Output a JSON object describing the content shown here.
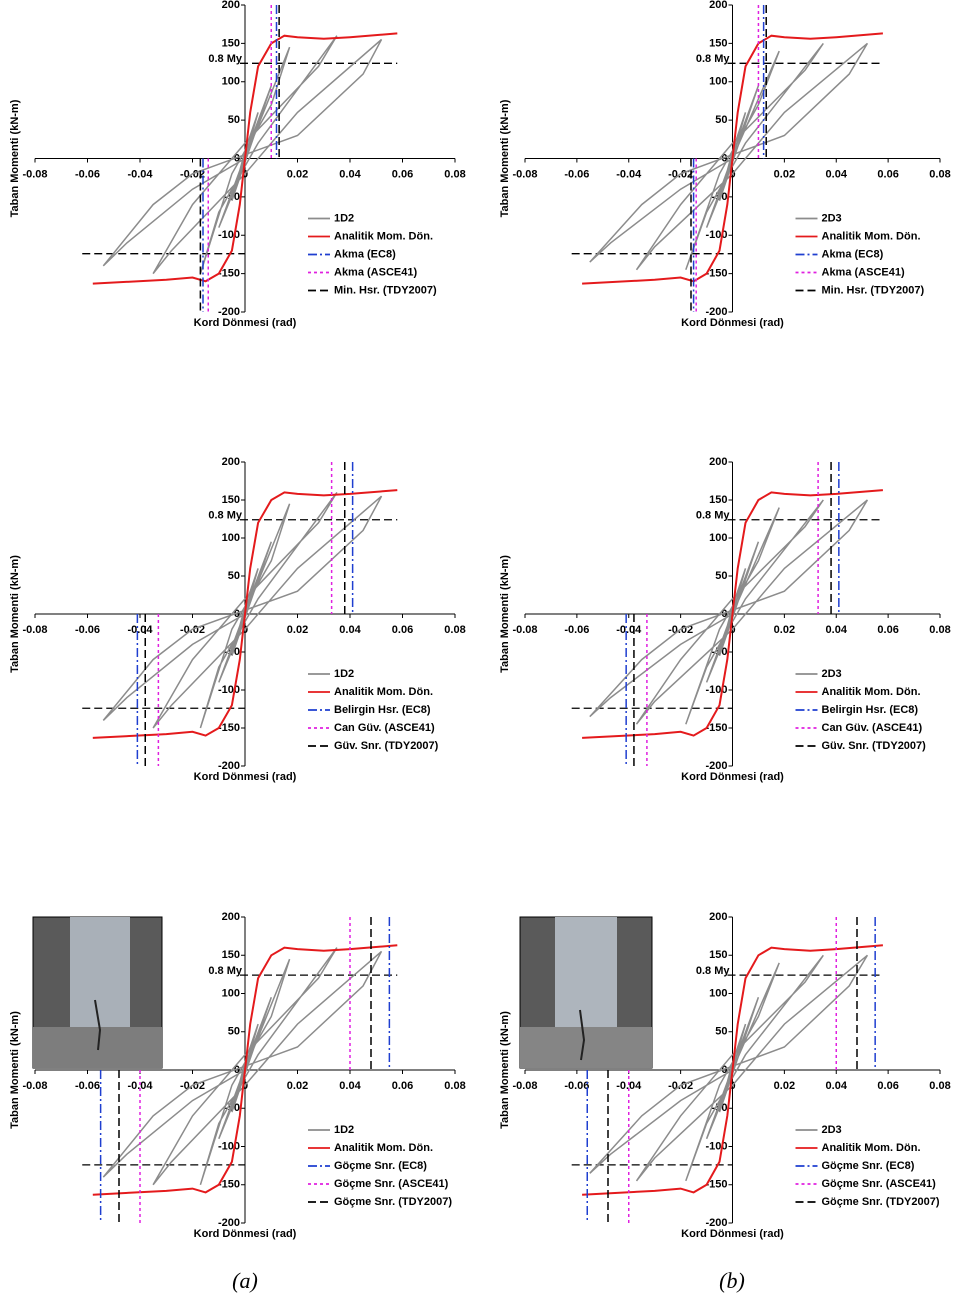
{
  "chart_data": [
    {
      "type": "line",
      "y_label": "Taban Momenti (kN-m)",
      "x_label": "Kord Dönmesi (rad)",
      "xlim": [
        -0.08,
        0.08
      ],
      "ylim": [
        -200,
        200
      ],
      "xticks": [
        -0.08,
        -0.06,
        -0.04,
        -0.02,
        0,
        0.02,
        0.04,
        0.06,
        0.08
      ],
      "yticks": [
        -200,
        -150,
        -100,
        -50,
        0,
        50,
        100,
        150,
        200
      ],
      "series": [
        {
          "name": "1D2",
          "color": "#8c8c8c",
          "x": [
            0,
            0.005,
            0,
            -0.005,
            0,
            0.01,
            0.004,
            -0.01,
            -0.004,
            0,
            0.017,
            0.01,
            -0.005,
            -0.017,
            -0.01,
            0.005,
            0.035,
            0.028,
            0,
            -0.02,
            -0.035,
            -0.028,
            0,
            0.02,
            0.052,
            0.045,
            0.02,
            -0.02,
            -0.035,
            -0.054,
            -0.045,
            -0.02,
            0
          ],
          "values": [
            0,
            60,
            10,
            -55,
            -5,
            95,
            40,
            -90,
            -40,
            0,
            145,
            70,
            -20,
            -150,
            -70,
            20,
            160,
            120,
            20,
            -60,
            -150,
            -120,
            -20,
            60,
            155,
            110,
            30,
            -20,
            -60,
            -140,
            -110,
            -40,
            0
          ]
        },
        {
          "name": "Analitik Mom. Dön.",
          "color": "#e41a1c",
          "x": [
            -0.058,
            -0.03,
            -0.02,
            -0.015,
            -0.01,
            -0.005,
            -0.002,
            0,
            0.002,
            0.005,
            0.01,
            0.015,
            0.02,
            0.03,
            0.04,
            0.058
          ],
          "values": [
            -163,
            -158,
            -155,
            -160,
            -150,
            -120,
            -60,
            0,
            60,
            120,
            150,
            160,
            158,
            156,
            158,
            163
          ]
        }
      ],
      "limit_lines": [
        {
          "name": "Akma (EC8)",
          "color": "#1f3fd0",
          "style": "dashdot",
          "x": [
            0.012,
            -0.016
          ]
        },
        {
          "name": "Akma (ASCE41)",
          "color": "#e020e0",
          "style": "dot",
          "x": [
            0.01,
            -0.014
          ]
        },
        {
          "name": "Min. Hsr. (TDY2007)",
          "color": "#000000",
          "style": "dash",
          "x": [
            0.013,
            -0.017
          ]
        }
      ],
      "ref_line": {
        "label": "0.8 My",
        "y": [
          124,
          -124
        ]
      }
    },
    {
      "type": "line",
      "y_label": "Taban Momenti (kN-m)",
      "x_label": "Kord Dönmesi (rad)",
      "xlim": [
        -0.08,
        0.08
      ],
      "ylim": [
        -200,
        200
      ],
      "xticks": [
        -0.08,
        -0.06,
        -0.04,
        -0.02,
        0,
        0.02,
        0.04,
        0.06,
        0.08
      ],
      "yticks": [
        -200,
        -150,
        -100,
        -50,
        0,
        50,
        100,
        150,
        200
      ],
      "series": [
        {
          "name": "2D3",
          "color": "#8c8c8c",
          "x": [
            0,
            0.005,
            0,
            -0.005,
            0,
            0.01,
            0.004,
            -0.01,
            -0.004,
            0,
            0.018,
            0.01,
            -0.005,
            -0.018,
            -0.01,
            0.005,
            0.035,
            0.028,
            0,
            -0.02,
            -0.037,
            -0.03,
            0,
            0.02,
            0.052,
            0.045,
            0.02,
            -0.02,
            -0.035,
            -0.055,
            -0.047,
            -0.02,
            0
          ],
          "values": [
            0,
            60,
            10,
            -55,
            -5,
            95,
            40,
            -90,
            -40,
            0,
            140,
            70,
            -20,
            -145,
            -70,
            20,
            150,
            115,
            20,
            -60,
            -145,
            -115,
            -20,
            60,
            150,
            110,
            30,
            -20,
            -60,
            -135,
            -110,
            -40,
            0
          ]
        },
        {
          "name": "Analitik Mom. Dön.",
          "color": "#e41a1c",
          "x": [
            -0.058,
            -0.03,
            -0.02,
            -0.015,
            -0.01,
            -0.005,
            -0.002,
            0,
            0.002,
            0.005,
            0.01,
            0.015,
            0.02,
            0.03,
            0.04,
            0.058
          ],
          "values": [
            -163,
            -158,
            -155,
            -160,
            -150,
            -120,
            -60,
            0,
            60,
            120,
            150,
            160,
            158,
            156,
            158,
            163
          ]
        }
      ],
      "limit_lines": [
        {
          "name": "Akma (EC8)",
          "color": "#1f3fd0",
          "style": "dashdot",
          "x": [
            0.012,
            -0.015
          ]
        },
        {
          "name": "Akma (ASCE41)",
          "color": "#e020e0",
          "style": "dot",
          "x": [
            0.01,
            -0.014
          ]
        },
        {
          "name": "Min. Hsr. (TDY2007)",
          "color": "#000000",
          "style": "dash",
          "x": [
            0.013,
            -0.016
          ]
        }
      ],
      "ref_line": {
        "label": "0.8 My",
        "y": [
          124,
          -124
        ]
      }
    },
    {
      "type": "line",
      "y_label": "Taban Momenti (kN-m)",
      "x_label": "Kord Dönmesi (rad)",
      "xlim": [
        -0.08,
        0.08
      ],
      "ylim": [
        -200,
        200
      ],
      "xticks": [
        -0.08,
        -0.06,
        -0.04,
        -0.02,
        0,
        0.02,
        0.04,
        0.06,
        0.08
      ],
      "yticks": [
        -200,
        -150,
        -100,
        -50,
        0,
        50,
        100,
        150,
        200
      ],
      "series": [
        {
          "name": "1D2",
          "color": "#8c8c8c",
          "x": [
            0,
            0.005,
            0,
            -0.005,
            0,
            0.01,
            0.004,
            -0.01,
            -0.004,
            0,
            0.017,
            0.01,
            -0.005,
            -0.017,
            -0.01,
            0.005,
            0.035,
            0.028,
            0,
            -0.02,
            -0.035,
            -0.028,
            0,
            0.02,
            0.052,
            0.045,
            0.02,
            -0.02,
            -0.035,
            -0.054,
            -0.045,
            -0.02,
            0
          ],
          "values": [
            0,
            60,
            10,
            -55,
            -5,
            95,
            40,
            -90,
            -40,
            0,
            145,
            70,
            -20,
            -150,
            -70,
            20,
            160,
            120,
            20,
            -60,
            -150,
            -120,
            -20,
            60,
            155,
            110,
            30,
            -20,
            -60,
            -140,
            -110,
            -40,
            0
          ]
        },
        {
          "name": "Analitik Mom. Dön.",
          "color": "#e41a1c",
          "x": [
            -0.058,
            -0.03,
            -0.02,
            -0.015,
            -0.01,
            -0.005,
            -0.002,
            0,
            0.002,
            0.005,
            0.01,
            0.015,
            0.02,
            0.03,
            0.04,
            0.058
          ],
          "values": [
            -163,
            -158,
            -155,
            -160,
            -150,
            -120,
            -60,
            0,
            60,
            120,
            150,
            160,
            158,
            156,
            158,
            163
          ]
        }
      ],
      "limit_lines": [
        {
          "name": "Belirgin Hsr. (EC8)",
          "color": "#1f3fd0",
          "style": "dashdot",
          "x": [
            0.041,
            -0.041
          ]
        },
        {
          "name": "Can Güv. (ASCE41)",
          "color": "#e020e0",
          "style": "dot",
          "x": [
            0.033,
            -0.033
          ]
        },
        {
          "name": "Güv. Snr. (TDY2007)",
          "color": "#000000",
          "style": "dash",
          "x": [
            0.038,
            -0.038
          ]
        }
      ],
      "ref_line": {
        "label": "0.8 My",
        "y": [
          124,
          -124
        ]
      }
    },
    {
      "type": "line",
      "y_label": "Taban Momenti (kN-m)",
      "x_label": "Kord Dönmesi (rad)",
      "xlim": [
        -0.08,
        0.08
      ],
      "ylim": [
        -200,
        200
      ],
      "xticks": [
        -0.08,
        -0.06,
        -0.04,
        -0.02,
        0,
        0.02,
        0.04,
        0.06,
        0.08
      ],
      "yticks": [
        -200,
        -150,
        -100,
        -50,
        0,
        50,
        100,
        150,
        200
      ],
      "series": [
        {
          "name": "2D3",
          "color": "#8c8c8c",
          "x": [
            0,
            0.005,
            0,
            -0.005,
            0,
            0.01,
            0.004,
            -0.01,
            -0.004,
            0,
            0.018,
            0.01,
            -0.005,
            -0.018,
            -0.01,
            0.005,
            0.035,
            0.028,
            0,
            -0.02,
            -0.037,
            -0.03,
            0,
            0.02,
            0.052,
            0.045,
            0.02,
            -0.02,
            -0.035,
            -0.055,
            -0.047,
            -0.02,
            0
          ],
          "values": [
            0,
            60,
            10,
            -55,
            -5,
            95,
            40,
            -90,
            -40,
            0,
            140,
            70,
            -20,
            -145,
            -70,
            20,
            150,
            115,
            20,
            -60,
            -145,
            -115,
            -20,
            60,
            150,
            110,
            30,
            -20,
            -60,
            -135,
            -110,
            -40,
            0
          ]
        },
        {
          "name": "Analitik Mom. Dön.",
          "color": "#e41a1c",
          "x": [
            -0.058,
            -0.03,
            -0.02,
            -0.015,
            -0.01,
            -0.005,
            -0.002,
            0,
            0.002,
            0.005,
            0.01,
            0.015,
            0.02,
            0.03,
            0.04,
            0.058
          ],
          "values": [
            -163,
            -158,
            -155,
            -160,
            -150,
            -120,
            -60,
            0,
            60,
            120,
            150,
            160,
            158,
            156,
            158,
            163
          ]
        }
      ],
      "limit_lines": [
        {
          "name": "Belirgin Hsr. (EC8)",
          "color": "#1f3fd0",
          "style": "dashdot",
          "x": [
            0.041,
            -0.041
          ]
        },
        {
          "name": "Can Güv. (ASCE41)",
          "color": "#e020e0",
          "style": "dot",
          "x": [
            0.033,
            -0.033
          ]
        },
        {
          "name": "Güv. Snr. (TDY2007)",
          "color": "#000000",
          "style": "dash",
          "x": [
            0.038,
            -0.038
          ]
        }
      ],
      "ref_line": {
        "label": "0.8 My",
        "y": [
          124,
          -124
        ]
      }
    },
    {
      "type": "line",
      "y_label": "Taban Momenti (kN-m)",
      "x_label": "Kord Dönmesi (rad)",
      "xlim": [
        -0.08,
        0.08
      ],
      "ylim": [
        -200,
        200
      ],
      "xticks": [
        -0.08,
        -0.06,
        -0.04,
        -0.02,
        0,
        0.02,
        0.04,
        0.06,
        0.08
      ],
      "yticks": [
        -200,
        -150,
        -100,
        -50,
        0,
        50,
        100,
        150,
        200
      ],
      "series": [
        {
          "name": "1D2",
          "color": "#8c8c8c",
          "x": [
            0,
            0.005,
            0,
            -0.005,
            0,
            0.01,
            0.004,
            -0.01,
            -0.004,
            0,
            0.017,
            0.01,
            -0.005,
            -0.017,
            -0.01,
            0.005,
            0.035,
            0.028,
            0,
            -0.02,
            -0.035,
            -0.028,
            0,
            0.02,
            0.052,
            0.045,
            0.02,
            -0.02,
            -0.035,
            -0.054,
            -0.045,
            -0.02,
            0
          ],
          "values": [
            0,
            60,
            10,
            -55,
            -5,
            95,
            40,
            -90,
            -40,
            0,
            145,
            70,
            -20,
            -150,
            -70,
            20,
            160,
            120,
            20,
            -60,
            -150,
            -120,
            -20,
            60,
            155,
            110,
            30,
            -20,
            -60,
            -140,
            -110,
            -40,
            0
          ]
        },
        {
          "name": "Analitik Mom. Dön.",
          "color": "#e41a1c",
          "x": [
            -0.058,
            -0.03,
            -0.02,
            -0.015,
            -0.01,
            -0.005,
            -0.002,
            0,
            0.002,
            0.005,
            0.01,
            0.015,
            0.02,
            0.03,
            0.04,
            0.058
          ],
          "values": [
            -163,
            -158,
            -155,
            -160,
            -150,
            -120,
            -60,
            0,
            60,
            120,
            150,
            160,
            158,
            156,
            158,
            163
          ]
        }
      ],
      "limit_lines": [
        {
          "name": "Göçme Snr. (EC8)",
          "color": "#1f3fd0",
          "style": "dashdot",
          "x": [
            0.055,
            -0.055
          ]
        },
        {
          "name": "Göçme Snr. (ASCE41)",
          "color": "#e020e0",
          "style": "dot",
          "x": [
            0.04,
            -0.04
          ]
        },
        {
          "name": "Göçme Snr. (TDY2007)",
          "color": "#000000",
          "style": "dash",
          "x": [
            0.048,
            -0.048
          ]
        }
      ],
      "ref_line": {
        "label": "0.8 My",
        "y": [
          124,
          -124
        ]
      }
    },
    {
      "type": "line",
      "y_label": "Taban Momenti (kN-m)",
      "x_label": "Kord Dönmesi (rad)",
      "xlim": [
        -0.08,
        0.08
      ],
      "ylim": [
        -200,
        200
      ],
      "xticks": [
        -0.08,
        -0.06,
        -0.04,
        -0.02,
        0,
        0.02,
        0.04,
        0.06,
        0.08
      ],
      "yticks": [
        -200,
        -150,
        -100,
        -50,
        0,
        50,
        100,
        150,
        200
      ],
      "series": [
        {
          "name": "2D3",
          "color": "#8c8c8c",
          "x": [
            0,
            0.005,
            0,
            -0.005,
            0,
            0.01,
            0.004,
            -0.01,
            -0.004,
            0,
            0.018,
            0.01,
            -0.005,
            -0.018,
            -0.01,
            0.005,
            0.035,
            0.028,
            0,
            -0.02,
            -0.037,
            -0.03,
            0,
            0.02,
            0.052,
            0.045,
            0.02,
            -0.02,
            -0.035,
            -0.055,
            -0.047,
            -0.02,
            0
          ],
          "values": [
            0,
            60,
            10,
            -55,
            -5,
            95,
            40,
            -90,
            -40,
            0,
            140,
            70,
            -20,
            -145,
            -70,
            20,
            150,
            115,
            20,
            -60,
            -145,
            -115,
            -20,
            60,
            150,
            110,
            30,
            -20,
            -60,
            -135,
            -110,
            -40,
            0
          ]
        },
        {
          "name": "Analitik Mom. Dön.",
          "color": "#e41a1c",
          "x": [
            -0.058,
            -0.03,
            -0.02,
            -0.015,
            -0.01,
            -0.005,
            -0.002,
            0,
            0.002,
            0.005,
            0.01,
            0.015,
            0.02,
            0.03,
            0.04,
            0.058
          ],
          "values": [
            -163,
            -158,
            -155,
            -160,
            -150,
            -120,
            -60,
            0,
            60,
            120,
            150,
            160,
            158,
            156,
            158,
            163
          ]
        }
      ],
      "limit_lines": [
        {
          "name": "Göçme Snr. (EC8)",
          "color": "#1f3fd0",
          "style": "dashdot",
          "x": [
            0.055,
            -0.056
          ]
        },
        {
          "name": "Göçme Snr. (ASCE41)",
          "color": "#e020e0",
          "style": "dot",
          "x": [
            0.04,
            -0.04
          ]
        },
        {
          "name": "Göçme Snr. (TDY2007)",
          "color": "#000000",
          "style": "dash",
          "x": [
            0.048,
            -0.048
          ]
        }
      ],
      "ref_line": {
        "label": "0.8 My",
        "y": [
          124,
          -124
        ]
      }
    }
  ],
  "captions": [
    "(a)",
    "(b)"
  ]
}
